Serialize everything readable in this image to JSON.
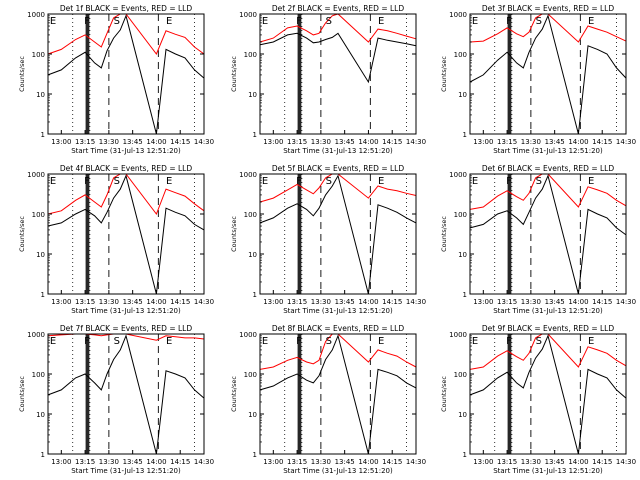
{
  "chart_data": [
    {
      "type": "line",
      "title": "Det 1f BLACK = Events, RED = LLD",
      "xlabel": "Start Time (31-Jul-13 12:51:20)",
      "ylabel": "Counts/sec",
      "ylog": true,
      "ylim": [
        1,
        1000
      ],
      "xlim": [
        12.86,
        14.5
      ],
      "xticks": [
        "13:00",
        "13:15",
        "13:30",
        "13:45",
        "14:00",
        "14:15",
        "14:30"
      ],
      "yticks": [
        "1",
        "10",
        "100",
        "1000"
      ],
      "annotations": [
        "E",
        "F",
        "S",
        "E"
      ],
      "series": [
        {
          "color": "#000000",
          "x": [
            12.86,
            13.0,
            13.15,
            13.25,
            13.35,
            13.42,
            13.48,
            13.55,
            13.62,
            13.68,
            14.0,
            14.1,
            14.2,
            14.3,
            14.4,
            14.5
          ],
          "y": [
            30,
            40,
            80,
            110,
            60,
            45,
            120,
            250,
            400,
            900,
            1,
            130,
            100,
            80,
            40,
            25
          ]
        },
        {
          "color": "#ff0000",
          "x": [
            12.86,
            13.0,
            13.15,
            13.25,
            13.35,
            13.42,
            13.48,
            13.55,
            13.62,
            13.68,
            14.0,
            14.1,
            14.2,
            14.3,
            14.4,
            14.5
          ],
          "y": [
            100,
            130,
            230,
            300,
            200,
            150,
            330,
            800,
            1000,
            1000,
            100,
            380,
            310,
            260,
            150,
            100
          ]
        }
      ]
    },
    {
      "type": "line",
      "title": "Det 2f BLACK = Events, RED = LLD",
      "xlabel": "Start Time (31-Jul-13 12:51:20)",
      "ylabel": "Counts/sec",
      "ylog": true,
      "ylim": [
        1,
        1000
      ],
      "xlim": [
        12.86,
        14.5
      ],
      "xticks": [
        "13:00",
        "13:15",
        "13:30",
        "13:45",
        "14:00",
        "14:15",
        "14:30"
      ],
      "yticks": [
        "1",
        "10",
        "100",
        "1000"
      ],
      "annotations": [
        "E",
        "F",
        "S",
        "E"
      ],
      "series": [
        {
          "color": "#000000",
          "x": [
            12.86,
            13.0,
            13.15,
            13.25,
            13.35,
            13.42,
            13.48,
            13.55,
            13.62,
            13.68,
            14.0,
            14.1,
            14.2,
            14.3,
            14.4,
            14.5
          ],
          "y": [
            170,
            200,
            300,
            330,
            250,
            190,
            200,
            230,
            260,
            330,
            20,
            250,
            220,
            200,
            180,
            160
          ]
        },
        {
          "color": "#ff0000",
          "x": [
            12.86,
            13.0,
            13.15,
            13.25,
            13.35,
            13.42,
            13.48,
            13.55,
            13.62,
            13.68,
            14.0,
            14.1,
            14.2,
            14.3,
            14.4,
            14.5
          ],
          "y": [
            200,
            250,
            450,
            500,
            380,
            300,
            330,
            600,
            900,
            1000,
            200,
            420,
            380,
            330,
            280,
            240
          ]
        }
      ]
    },
    {
      "type": "line",
      "title": "Det 3f BLACK = Events, RED = LLD",
      "xlabel": "Start Time (31-Jul-13 12:51:20)",
      "ylabel": "Counts/sec",
      "ylog": true,
      "ylim": [
        1,
        1000
      ],
      "xlim": [
        12.86,
        14.5
      ],
      "xticks": [
        "13:00",
        "13:15",
        "13:30",
        "13:45",
        "14:00",
        "14:15",
        "14:30"
      ],
      "yticks": [
        "1",
        "10",
        "100",
        "1000"
      ],
      "annotations": [
        "E",
        "F",
        "S",
        "E"
      ],
      "series": [
        {
          "color": "#000000",
          "x": [
            12.86,
            13.0,
            13.15,
            13.25,
            13.35,
            13.42,
            13.48,
            13.55,
            13.62,
            13.68,
            14.0,
            14.1,
            14.2,
            14.3,
            14.4,
            14.5
          ],
          "y": [
            20,
            30,
            70,
            110,
            60,
            45,
            110,
            250,
            420,
            900,
            1,
            160,
            130,
            100,
            45,
            25
          ]
        },
        {
          "color": "#ff0000",
          "x": [
            12.86,
            13.0,
            13.15,
            13.25,
            13.35,
            13.42,
            13.48,
            13.55,
            13.62,
            13.68,
            14.0,
            14.1,
            14.2,
            14.3,
            14.4,
            14.5
          ],
          "y": [
            200,
            210,
            320,
            450,
            320,
            270,
            350,
            800,
            1000,
            1000,
            200,
            500,
            420,
            350,
            270,
            210
          ]
        }
      ]
    },
    {
      "type": "line",
      "title": "Det 4f BLACK = Events, RED = LLD",
      "xlabel": "Start Time (31-Jul-13 12:51:20)",
      "ylabel": "Counts/sec",
      "ylog": true,
      "ylim": [
        1,
        1000
      ],
      "xlim": [
        12.86,
        14.5
      ],
      "xticks": [
        "13:00",
        "13:15",
        "13:30",
        "13:45",
        "14:00",
        "14:15",
        "14:30"
      ],
      "yticks": [
        "1",
        "10",
        "100",
        "1000"
      ],
      "annotations": [
        "E",
        "F",
        "S",
        "E"
      ],
      "series": [
        {
          "color": "#000000",
          "x": [
            12.86,
            13.0,
            13.15,
            13.25,
            13.35,
            13.42,
            13.48,
            13.55,
            13.62,
            13.68,
            14.0,
            14.1,
            14.2,
            14.3,
            14.4,
            14.5
          ],
          "y": [
            50,
            60,
            100,
            130,
            90,
            60,
            110,
            250,
            420,
            900,
            1,
            140,
            110,
            90,
            55,
            40
          ]
        },
        {
          "color": "#ff0000",
          "x": [
            12.86,
            13.0,
            13.15,
            13.25,
            13.35,
            13.42,
            13.48,
            13.55,
            13.62,
            13.68,
            14.0,
            14.1,
            14.2,
            14.3,
            14.4,
            14.5
          ],
          "y": [
            100,
            120,
            220,
            300,
            200,
            150,
            300,
            800,
            1000,
            1000,
            100,
            420,
            340,
            280,
            180,
            120
          ]
        }
      ]
    },
    {
      "type": "line",
      "title": "Det 5f BLACK = Events, RED = LLD",
      "xlabel": "Start Time (31-Jul-13 12:51:20)",
      "ylabel": "Counts/sec",
      "ylog": true,
      "ylim": [
        1,
        1000
      ],
      "xlim": [
        12.86,
        14.5
      ],
      "xticks": [
        "13:00",
        "13:15",
        "13:30",
        "13:45",
        "14:00",
        "14:15",
        "14:30"
      ],
      "yticks": [
        "1",
        "10",
        "100",
        "1000"
      ],
      "annotations": [
        "E",
        "F",
        "S",
        "E"
      ],
      "series": [
        {
          "color": "#000000",
          "x": [
            12.86,
            13.0,
            13.15,
            13.25,
            13.35,
            13.42,
            13.48,
            13.55,
            13.62,
            13.68,
            14.0,
            14.1,
            14.2,
            14.3,
            14.4,
            14.5
          ],
          "y": [
            60,
            80,
            140,
            180,
            130,
            90,
            140,
            300,
            500,
            900,
            1,
            170,
            140,
            110,
            80,
            60
          ]
        },
        {
          "color": "#ff0000",
          "x": [
            12.86,
            13.0,
            13.15,
            13.25,
            13.35,
            13.42,
            13.48,
            13.55,
            13.62,
            13.68,
            14.0,
            14.1,
            14.2,
            14.3,
            14.4,
            14.5
          ],
          "y": [
            200,
            250,
            400,
            550,
            400,
            320,
            450,
            800,
            1000,
            1000,
            250,
            500,
            420,
            380,
            330,
            290
          ]
        }
      ]
    },
    {
      "type": "line",
      "title": "Det 6f BLACK = Events, RED = LLD",
      "xlabel": "Start Time (31-Jul-13 12:51:20)",
      "ylabel": "Counts/sec",
      "ylog": true,
      "ylim": [
        1,
        1000
      ],
      "xlim": [
        12.86,
        14.5
      ],
      "xticks": [
        "13:00",
        "13:15",
        "13:30",
        "13:45",
        "14:00",
        "14:15",
        "14:30"
      ],
      "yticks": [
        "1",
        "10",
        "100",
        "1000"
      ],
      "annotations": [
        "E",
        "F",
        "S",
        "E"
      ],
      "series": [
        {
          "color": "#000000",
          "x": [
            12.86,
            13.0,
            13.15,
            13.25,
            13.35,
            13.42,
            13.48,
            13.55,
            13.62,
            13.68,
            14.0,
            14.1,
            14.2,
            14.3,
            14.4,
            14.5
          ],
          "y": [
            45,
            55,
            100,
            120,
            80,
            55,
            110,
            250,
            420,
            900,
            1,
            130,
            100,
            80,
            45,
            30
          ]
        },
        {
          "color": "#ff0000",
          "x": [
            12.86,
            13.0,
            13.15,
            13.25,
            13.35,
            13.42,
            13.48,
            13.55,
            13.62,
            13.68,
            14.0,
            14.1,
            14.2,
            14.3,
            14.4,
            14.5
          ],
          "y": [
            130,
            150,
            280,
            380,
            270,
            220,
            330,
            800,
            1000,
            1000,
            150,
            480,
            400,
            330,
            220,
            160
          ]
        }
      ]
    },
    {
      "type": "line",
      "title": "Det 7f BLACK = Events, RED = LLD",
      "xlabel": "Start Time (31-Jul-13 12:51:20)",
      "ylabel": "Counts/sec",
      "ylog": true,
      "ylim": [
        1,
        1000
      ],
      "xlim": [
        12.86,
        14.5
      ],
      "xticks": [
        "13:00",
        "13:15",
        "13:30",
        "13:45",
        "14:00",
        "14:15",
        "14:30"
      ],
      "yticks": [
        "1",
        "10",
        "100",
        "1000"
      ],
      "annotations": [
        "E",
        "F",
        "S",
        "E"
      ],
      "series": [
        {
          "color": "#000000",
          "x": [
            12.86,
            13.0,
            13.15,
            13.25,
            13.35,
            13.42,
            13.48,
            13.55,
            13.62,
            13.68,
            14.0,
            14.1,
            14.2,
            14.3,
            14.4,
            14.5
          ],
          "y": [
            30,
            40,
            80,
            100,
            60,
            40,
            100,
            230,
            400,
            900,
            1,
            120,
            100,
            80,
            40,
            25
          ]
        },
        {
          "color": "#ff0000",
          "x": [
            12.86,
            13.0,
            13.15,
            13.25,
            13.35,
            13.42,
            13.48,
            13.55,
            13.62,
            13.68,
            14.0,
            14.1,
            14.2,
            14.3,
            14.4,
            14.5
          ],
          "y": [
            900,
            950,
            1000,
            1000,
            950,
            900,
            950,
            1000,
            1000,
            1000,
            700,
            900,
            850,
            800,
            800,
            750
          ]
        }
      ]
    },
    {
      "type": "line",
      "title": "Det 8f BLACK = Events, RED = LLD",
      "xlabel": "Start Time (31-Jul-13 12:51:20)",
      "ylabel": "Counts/sec",
      "ylog": true,
      "ylim": [
        1,
        1000
      ],
      "xlim": [
        12.86,
        14.5
      ],
      "xticks": [
        "13:00",
        "13:15",
        "13:30",
        "13:45",
        "14:00",
        "14:15",
        "14:30"
      ],
      "yticks": [
        "1",
        "10",
        "100",
        "1000"
      ],
      "annotations": [
        "E",
        "F",
        "S",
        "E"
      ],
      "series": [
        {
          "color": "#000000",
          "x": [
            12.86,
            13.0,
            13.15,
            13.25,
            13.35,
            13.42,
            13.48,
            13.55,
            13.62,
            13.68,
            14.0,
            14.1,
            14.2,
            14.3,
            14.4,
            14.5
          ],
          "y": [
            40,
            50,
            80,
            100,
            70,
            60,
            90,
            230,
            400,
            900,
            1,
            130,
            110,
            90,
            60,
            45
          ]
        },
        {
          "color": "#ff0000",
          "x": [
            12.86,
            13.0,
            13.15,
            13.25,
            13.35,
            13.42,
            13.48,
            13.55,
            13.62,
            13.68,
            14.0,
            14.1,
            14.2,
            14.3,
            14.4,
            14.5
          ],
          "y": [
            130,
            150,
            220,
            260,
            200,
            180,
            220,
            650,
            1000,
            1000,
            200,
            400,
            330,
            280,
            200,
            150
          ]
        }
      ]
    },
    {
      "type": "line",
      "title": "Det 9f BLACK = Events, RED = LLD",
      "xlabel": "Start Time (31-Jul-13 12:51:20)",
      "ylabel": "Counts/sec",
      "ylog": true,
      "ylim": [
        1,
        1000
      ],
      "xlim": [
        12.86,
        14.5
      ],
      "xticks": [
        "13:00",
        "13:15",
        "13:30",
        "13:45",
        "14:00",
        "14:15",
        "14:30"
      ],
      "yticks": [
        "1",
        "10",
        "100",
        "1000"
      ],
      "annotations": [
        "E",
        "F",
        "S",
        "E"
      ],
      "series": [
        {
          "color": "#000000",
          "x": [
            12.86,
            13.0,
            13.15,
            13.25,
            13.35,
            13.42,
            13.48,
            13.55,
            13.62,
            13.68,
            14.0,
            14.1,
            14.2,
            14.3,
            14.4,
            14.5
          ],
          "y": [
            30,
            40,
            80,
            110,
            60,
            45,
            110,
            250,
            420,
            900,
            1,
            130,
            100,
            80,
            40,
            25
          ]
        },
        {
          "color": "#ff0000",
          "x": [
            12.86,
            13.0,
            13.15,
            13.25,
            13.35,
            13.42,
            13.48,
            13.55,
            13.62,
            13.68,
            14.0,
            14.1,
            14.2,
            14.3,
            14.4,
            14.5
          ],
          "y": [
            130,
            150,
            280,
            380,
            270,
            220,
            330,
            800,
            1000,
            1000,
            150,
            480,
            400,
            330,
            220,
            160
          ]
        }
      ]
    }
  ],
  "markers": {
    "solid_x": [
      13.26,
      13.27,
      13.28,
      13.29
    ],
    "dashed_x": [
      13.5,
      14.02
    ],
    "dotted_x": [
      13.12,
      13.3,
      14.4
    ]
  }
}
